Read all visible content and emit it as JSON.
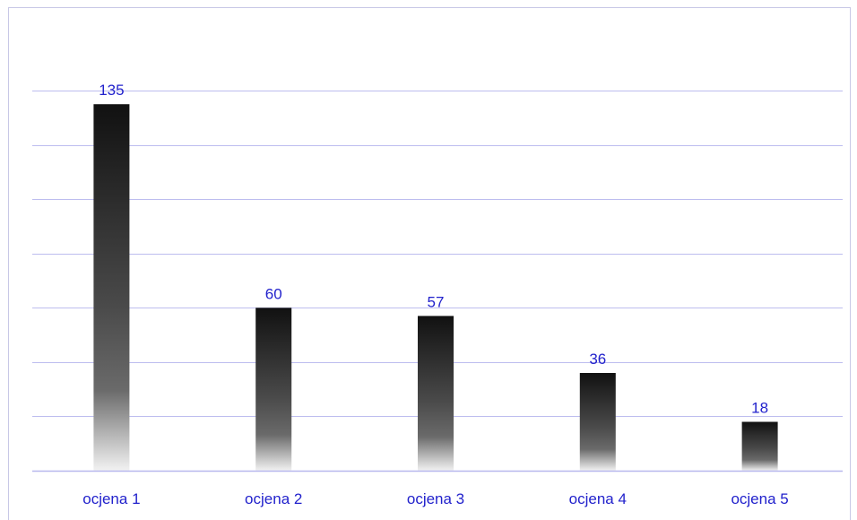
{
  "chart_data": {
    "type": "bar",
    "categories": [
      "ocjena 1",
      "ocjena 2",
      "ocjena 3",
      "ocjena 4",
      "ocjena 5"
    ],
    "values": [
      135,
      60,
      57,
      36,
      18
    ],
    "data_labels": [
      "135",
      "60",
      "57",
      "36",
      "18"
    ],
    "title": "",
    "xlabel": "",
    "ylabel": "",
    "ylim": [
      0,
      160
    ],
    "y_tick_step": 20,
    "grid": true,
    "legend": "none",
    "colors": {
      "bar_top": "#111111",
      "bar_bottom": "#f2f2f2",
      "label_text": "#2222cc",
      "gridline": "#bdbdef"
    }
  }
}
